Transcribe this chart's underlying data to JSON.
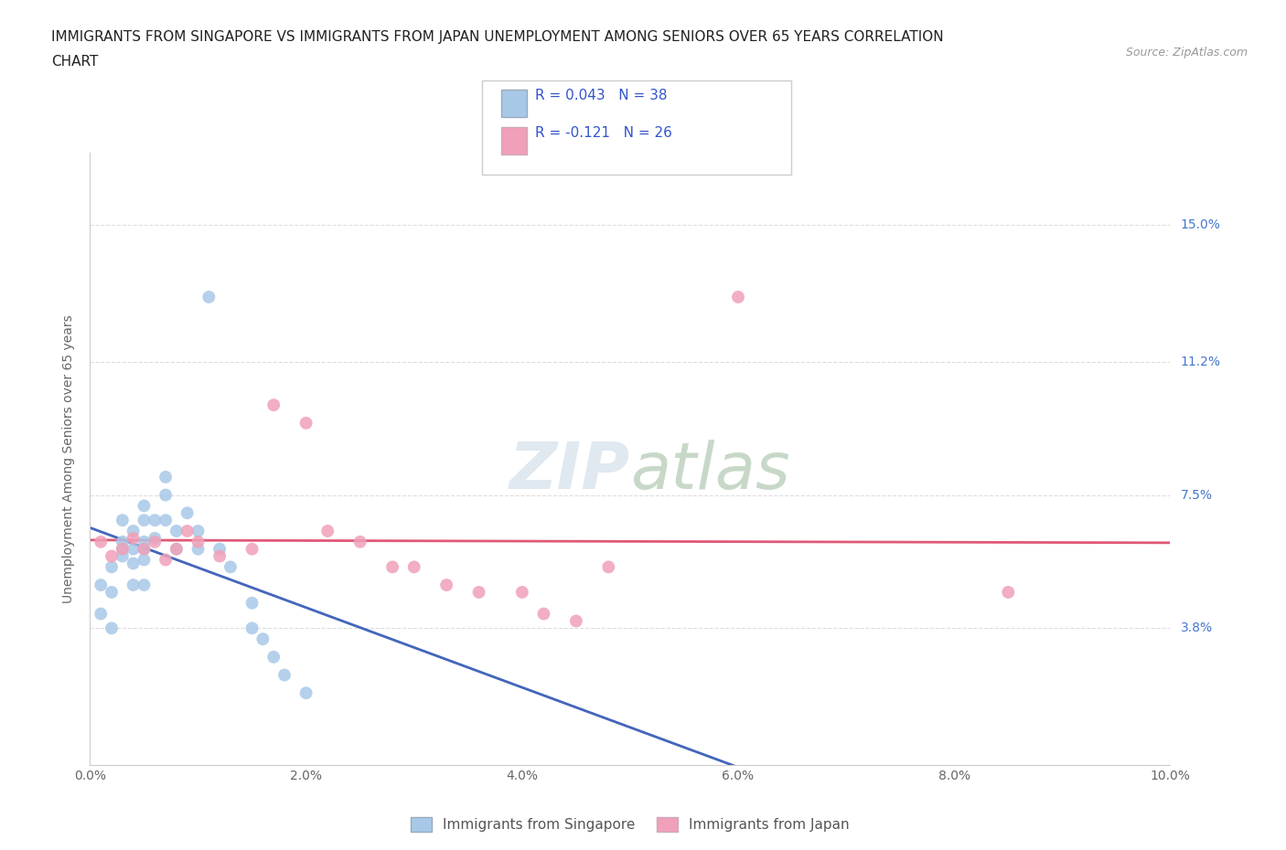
{
  "title_line1": "IMMIGRANTS FROM SINGAPORE VS IMMIGRANTS FROM JAPAN UNEMPLOYMENT AMONG SENIORS OVER 65 YEARS CORRELATION",
  "title_line2": "CHART",
  "source": "Source: ZipAtlas.com",
  "ylabel": "Unemployment Among Seniors over 65 years",
  "xlim": [
    0,
    0.1
  ],
  "ylim": [
    0.0,
    0.17
  ],
  "xtick_vals": [
    0.0,
    0.02,
    0.04,
    0.06,
    0.08,
    0.1
  ],
  "xtick_labels": [
    "0.0%",
    "2.0%",
    "4.0%",
    "6.0%",
    "8.0%",
    "10.0%"
  ],
  "ytick_vals": [
    0.038,
    0.075,
    0.112,
    0.15
  ],
  "ytick_labels": [
    "3.8%",
    "7.5%",
    "11.2%",
    "15.0%"
  ],
  "grid_color": "#dddddd",
  "background_color": "#ffffff",
  "color_singapore": "#a8c8e8",
  "color_japan": "#f0a0b8",
  "trendline_color_singapore": "#4466bb",
  "trendline_color_japan": "#e05878",
  "sg_x": [
    0.001,
    0.001,
    0.002,
    0.002,
    0.002,
    0.003,
    0.003,
    0.003,
    0.003,
    0.004,
    0.004,
    0.004,
    0.004,
    0.005,
    0.005,
    0.005,
    0.005,
    0.005,
    0.005,
    0.006,
    0.006,
    0.007,
    0.007,
    0.007,
    0.008,
    0.008,
    0.009,
    0.01,
    0.01,
    0.011,
    0.012,
    0.013,
    0.015,
    0.015,
    0.016,
    0.017,
    0.018,
    0.02
  ],
  "sg_y": [
    0.05,
    0.042,
    0.055,
    0.048,
    0.038,
    0.068,
    0.062,
    0.06,
    0.058,
    0.065,
    0.06,
    0.056,
    0.05,
    0.072,
    0.068,
    0.062,
    0.06,
    0.057,
    0.05,
    0.068,
    0.063,
    0.08,
    0.075,
    0.068,
    0.065,
    0.06,
    0.07,
    0.065,
    0.06,
    0.13,
    0.06,
    0.055,
    0.045,
    0.038,
    0.035,
    0.03,
    0.025,
    0.02
  ],
  "jp_x": [
    0.001,
    0.002,
    0.003,
    0.004,
    0.005,
    0.006,
    0.007,
    0.008,
    0.009,
    0.01,
    0.012,
    0.015,
    0.017,
    0.02,
    0.022,
    0.025,
    0.028,
    0.03,
    0.033,
    0.036,
    0.04,
    0.042,
    0.045,
    0.048,
    0.06,
    0.085
  ],
  "jp_y": [
    0.062,
    0.058,
    0.06,
    0.063,
    0.06,
    0.062,
    0.057,
    0.06,
    0.065,
    0.062,
    0.058,
    0.06,
    0.1,
    0.095,
    0.065,
    0.062,
    0.055,
    0.055,
    0.05,
    0.048,
    0.048,
    0.042,
    0.04,
    0.055,
    0.13,
    0.048
  ]
}
